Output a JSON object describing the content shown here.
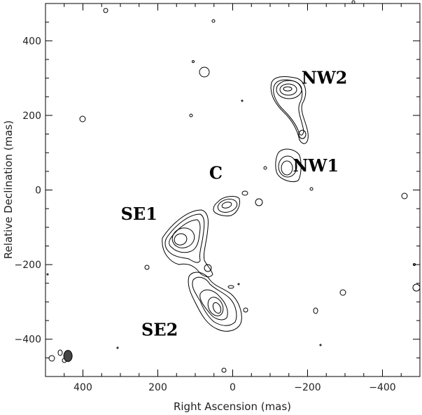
{
  "chart_data": {
    "type": "contour",
    "xlabel": "Right Ascension  (mas)",
    "ylabel": "Relative Declination  (mas)",
    "xlim": [
      500,
      -500
    ],
    "ylim": [
      -500,
      500
    ],
    "x_reversed": true,
    "x_ticks": [
      400,
      200,
      0,
      -200,
      -400
    ],
    "y_ticks": [
      400,
      200,
      0,
      -200,
      -400
    ],
    "x_tick_labels": [
      "400",
      "200",
      "0",
      "−200",
      "−400"
    ],
    "y_tick_labels": [
      "400",
      "200",
      "0",
      "−200",
      "−400"
    ],
    "components": [
      {
        "name": "NW2",
        "ra": -150,
        "dec": 270
      },
      {
        "name": "NW1",
        "ra": -150,
        "dec": 60
      },
      {
        "name": "C",
        "ra": 5,
        "dec": -40
      },
      {
        "name": "SE1",
        "ra": 140,
        "dec": -135
      },
      {
        "name": "SE2",
        "ra": 35,
        "dec": -350
      }
    ],
    "labels": [
      {
        "text": "NW2",
        "ra": -245,
        "dec": 285
      },
      {
        "text": "NW1",
        "ra": -222,
        "dec": 50
      },
      {
        "text": "C",
        "ra": 45,
        "dec": 30
      },
      {
        "text": "SE1",
        "ra": 250,
        "dec": -80
      },
      {
        "text": "SE2",
        "ra": 195,
        "dec": -390
      }
    ],
    "beam": {
      "ra": 440,
      "dec": -445,
      "major_mas": 25,
      "minor_mas": 20
    }
  }
}
